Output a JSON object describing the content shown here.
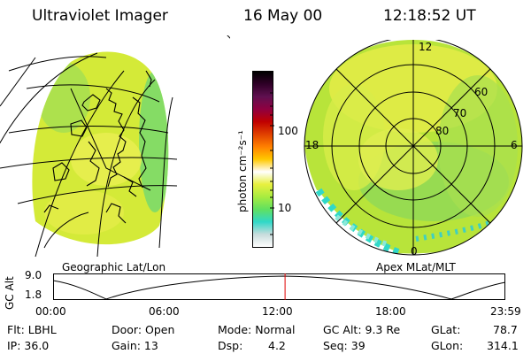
{
  "header": {
    "instrument": "Ultraviolet Imager",
    "date": "16 May 00",
    "time": "12:18:52 UT"
  },
  "left_panel": {
    "caption": "Geographic Lat/Lon"
  },
  "right_panel": {
    "caption": "Apex MLat/MLT",
    "mlt_labels": {
      "top": "12",
      "left": "18",
      "right": "6",
      "bottom": "0"
    },
    "lat_labels": [
      "60",
      "70",
      "80"
    ]
  },
  "colorbar": {
    "unit_label": "photon cm⁻²s⁻¹",
    "tick_100": "100",
    "tick_10": "10",
    "colors": [
      "#ffffff",
      "#c8dcdc",
      "#30d8c8",
      "#60e060",
      "#a8ec40",
      "#e8f040",
      "#ffffff",
      "#ffc800",
      "#ff8000",
      "#e04000",
      "#c00000",
      "#900040",
      "#601050",
      "#300028",
      "#000000"
    ]
  },
  "timeline": {
    "ylabel": "GC Alt",
    "ymax": "9.0",
    "ymin": "1.8",
    "ticks": [
      "00:00",
      "06:00",
      "12:00",
      "18:00",
      "23:59"
    ],
    "current_time": "12:18"
  },
  "status": {
    "flt": "Flt: LBHL",
    "ip": "IP: 36.0",
    "door": "Door: Open",
    "gain": "Gain: 13",
    "mode": "Mode: Normal",
    "dsp": "Dsp:",
    "dsp_value": "4.2",
    "gc_alt": "GC Alt: 9.3 Re",
    "seq": "Seq: 39",
    "glat": "GLat:",
    "glat_value": "78.7",
    "glon": "GLon:",
    "glon_value": "314.1"
  }
}
